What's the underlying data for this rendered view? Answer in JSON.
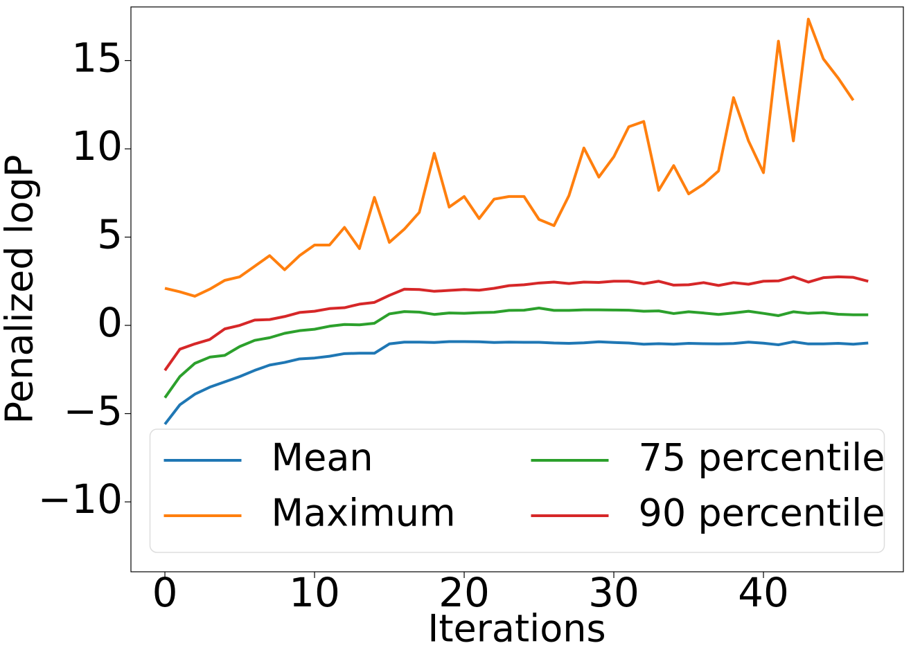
{
  "chart_data": {
    "type": "line",
    "xlabel": "Iterations",
    "ylabel": "Penalized logP",
    "x": [
      0,
      1,
      2,
      3,
      4,
      5,
      6,
      7,
      8,
      9,
      10,
      11,
      12,
      13,
      14,
      15,
      16,
      17,
      18,
      19,
      20,
      21,
      22,
      23,
      24,
      25,
      26,
      27,
      28,
      29,
      30,
      31,
      32,
      33,
      34,
      35,
      36,
      37,
      38,
      39,
      40,
      41,
      42,
      43,
      44,
      45,
      46,
      47
    ],
    "series": [
      {
        "name": "Mean",
        "color": "#1f77b4",
        "values": [
          -5.6,
          -4.5,
          -3.9,
          -3.5,
          -3.2,
          -2.9,
          -2.55,
          -2.25,
          -2.1,
          -1.9,
          -1.85,
          -1.75,
          -1.6,
          -1.58,
          -1.58,
          -1.05,
          -0.95,
          -0.95,
          -0.97,
          -0.92,
          -0.92,
          -0.93,
          -0.97,
          -0.95,
          -0.96,
          -0.96,
          -1.0,
          -1.02,
          -0.99,
          -0.93,
          -0.97,
          -1.0,
          -1.07,
          -1.04,
          -1.07,
          -1.02,
          -1.04,
          -1.05,
          -1.03,
          -0.95,
          -1.01,
          -1.1,
          -0.93,
          -1.05,
          -1.05,
          -1.02,
          -1.07,
          -1.0
        ]
      },
      {
        "name": "Maximum",
        "color": "#ff7f0e",
        "values": [
          2.1,
          1.9,
          1.65,
          2.05,
          2.55,
          2.75,
          3.35,
          3.95,
          3.15,
          3.95,
          4.55,
          4.55,
          5.55,
          4.35,
          7.25,
          4.7,
          5.45,
          6.4,
          9.75,
          6.7,
          7.3,
          6.05,
          7.15,
          7.3,
          7.3,
          6.0,
          5.65,
          7.35,
          10.05,
          8.4,
          9.55,
          11.25,
          11.55,
          7.65,
          9.05,
          7.45,
          8.0,
          8.75,
          12.9,
          10.45,
          8.65,
          16.1,
          10.45,
          17.35,
          15.1,
          14.0,
          12.75,
          null
        ]
      },
      {
        "name": "75 percentile",
        "color": "#2ca02c",
        "values": [
          -4.1,
          -2.9,
          -2.15,
          -1.8,
          -1.7,
          -1.2,
          -0.85,
          -0.7,
          -0.45,
          -0.3,
          -0.22,
          -0.05,
          0.05,
          0.03,
          0.12,
          0.65,
          0.78,
          0.75,
          0.62,
          0.7,
          0.68,
          0.72,
          0.74,
          0.85,
          0.86,
          0.98,
          0.85,
          0.85,
          0.88,
          0.88,
          0.87,
          0.86,
          0.8,
          0.82,
          0.67,
          0.77,
          0.7,
          0.62,
          0.7,
          0.8,
          0.68,
          0.55,
          0.77,
          0.68,
          0.72,
          0.63,
          0.6,
          0.6
        ]
      },
      {
        "name": "90 percentile",
        "color": "#d62728",
        "values": [
          -2.55,
          -1.35,
          -1.05,
          -0.8,
          -0.2,
          0,
          0.3,
          0.33,
          0.5,
          0.73,
          0.8,
          0.95,
          1.0,
          1.2,
          1.3,
          1.7,
          2.05,
          2.03,
          1.93,
          1.98,
          2.03,
          1.99,
          2.1,
          2.25,
          2.3,
          2.4,
          2.45,
          2.37,
          2.45,
          2.43,
          2.5,
          2.5,
          2.36,
          2.5,
          2.28,
          2.3,
          2.42,
          2.26,
          2.42,
          2.33,
          2.5,
          2.52,
          2.75,
          2.45,
          2.7,
          2.75,
          2.72,
          2.5
        ]
      }
    ],
    "xlim": [
      -2.27,
      49.35
    ],
    "xticks": [
      0,
      10,
      20,
      30,
      40
    ],
    "ylim": [
      -13.96,
      18.04
    ],
    "yticks": [
      {
        "value": -10,
        "label": "−10"
      },
      {
        "value": -5,
        "label": "−5"
      },
      0,
      5,
      10,
      15
    ],
    "legend": "lower center",
    "legend_columns": 2
  }
}
